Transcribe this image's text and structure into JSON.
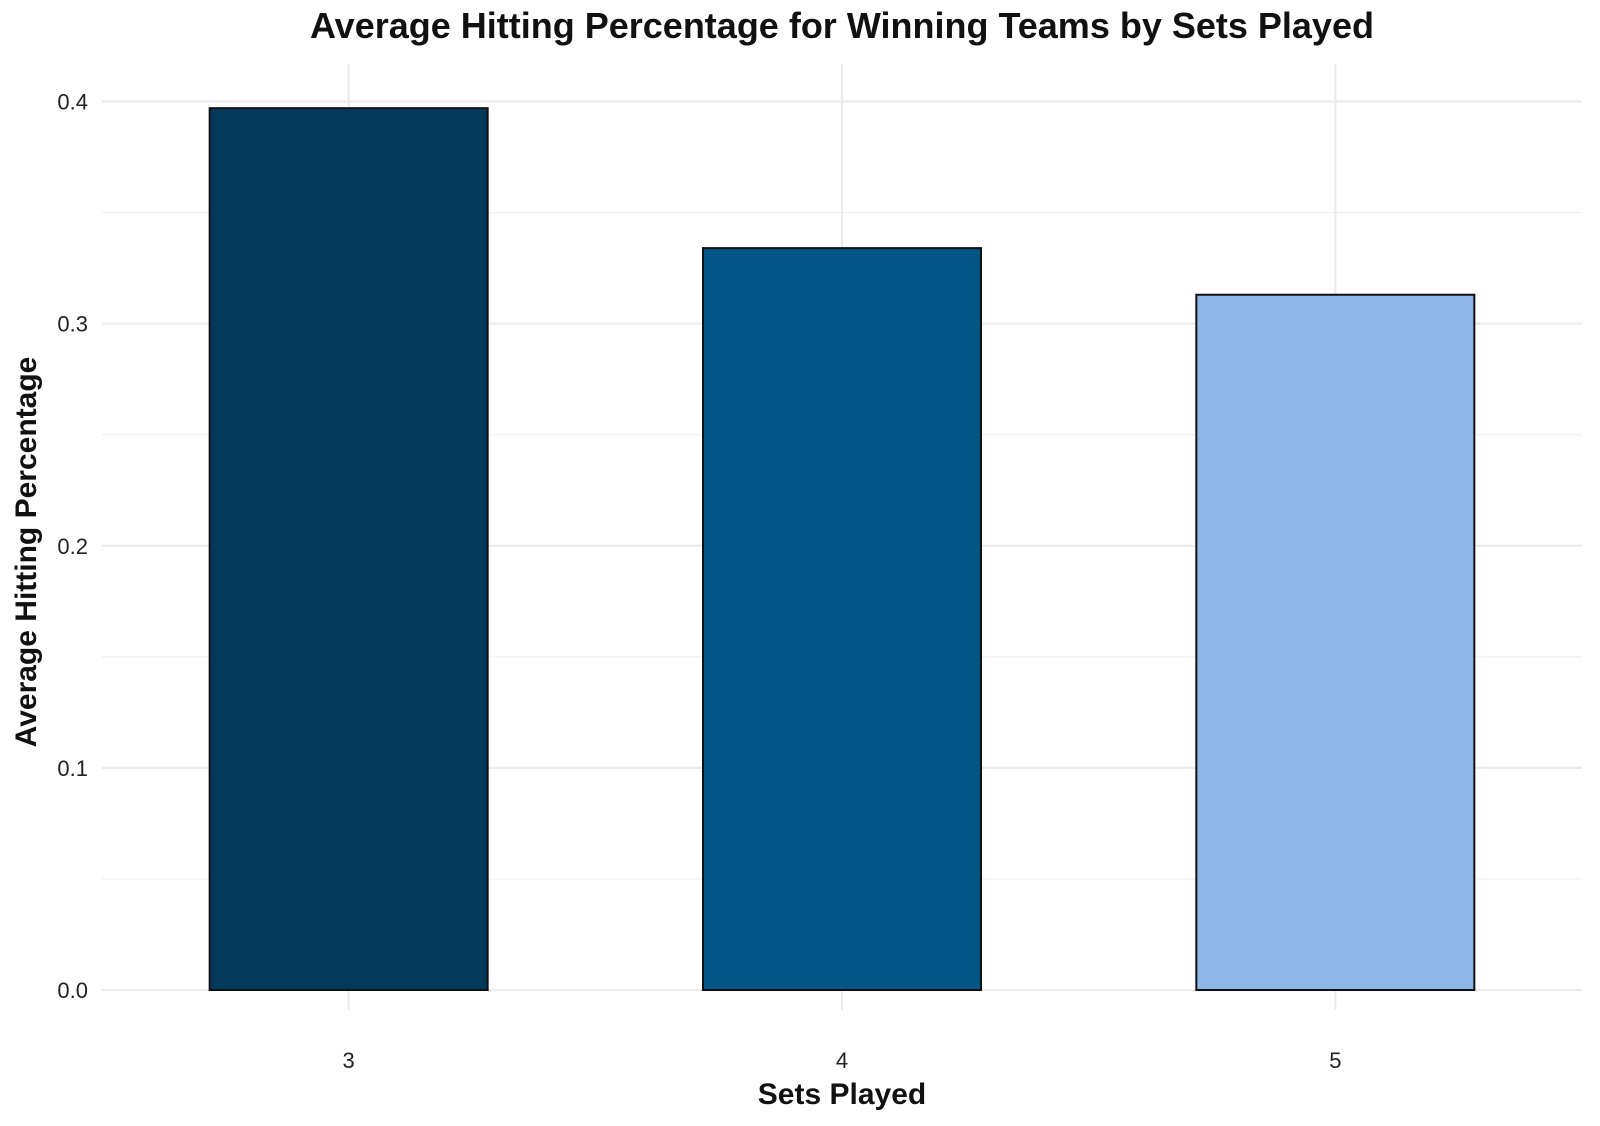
{
  "chart_data": {
    "type": "bar",
    "title": "Average Hitting Percentage for Winning Teams by Sets Played",
    "xlabel": "Sets Played",
    "ylabel": "Average Hitting Percentage",
    "categories": [
      "3",
      "4",
      "5"
    ],
    "values": [
      0.397,
      0.334,
      0.313
    ],
    "colors": [
      "#033a5c",
      "#025585",
      "#8cb7e6"
    ],
    "bar_outline_color": "#111111",
    "ylim": [
      0,
      0.41
    ],
    "yticks": [
      "0.0",
      "0.1",
      "0.2",
      "0.3",
      "0.4"
    ],
    "grid": true,
    "legend": "none"
  }
}
